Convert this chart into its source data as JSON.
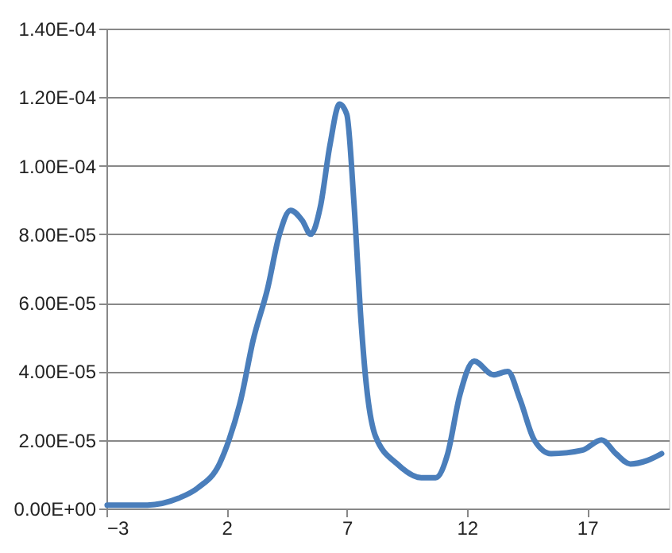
{
  "chart_data": {
    "type": "line",
    "x": [
      -2.97,
      -1.3,
      0.0,
      0.8,
      1.7,
      2.1,
      2.6,
      3.1,
      3.7,
      4.2,
      4.66,
      5.15,
      5.5,
      5.9,
      6.3,
      6.7,
      7.0,
      7.3,
      7.6,
      7.8,
      8.2,
      9.1,
      10.1,
      10.7,
      11.2,
      11.7,
      12.3,
      13.1,
      13.7,
      14.2,
      14.8,
      15.5,
      16.8,
      17.6,
      18.2,
      18.8,
      19.5,
      20.1
    ],
    "series": [
      {
        "color": "#4a7ebb",
        "values": [
          1e-06,
          1e-06,
          3e-06,
          6e-06,
          1.3e-05,
          2e-05,
          3.2e-05,
          4.9e-05,
          6.4e-05,
          8e-05,
          8.7e-05,
          8.4e-05,
          8e-05,
          8.8e-05,
          0.000106,
          0.000118,
          0.000115,
          8.9e-05,
          5.4e-05,
          3.7e-05,
          2.1e-05,
          1.3e-05,
          9e-06,
          9e-06,
          1.6e-05,
          3.3e-05,
          4.3e-05,
          3.9e-05,
          4e-05,
          3.2e-05,
          2e-05,
          1.6e-05,
          1.7e-05,
          2e-05,
          1.6e-05,
          1.3e-05,
          1.4e-05,
          1.6e-05
        ]
      }
    ],
    "xlim": [
      -3,
      20.4
    ],
    "xticks": [
      -3,
      2,
      7,
      12,
      17
    ],
    "ylim": [
      0,
      0.00014
    ],
    "yticks": [
      {
        "value": 0,
        "label": "0.00E+00"
      },
      {
        "value": 2e-05,
        "label": "2.00E-05"
      },
      {
        "value": 4e-05,
        "label": "4.00E-05"
      },
      {
        "value": 6e-05,
        "label": "6.00E-05"
      },
      {
        "value": 8e-05,
        "label": "8.00E-05"
      },
      {
        "value": 0.0001,
        "label": "1.00E-04"
      },
      {
        "value": 0.00012,
        "label": "1.20E-04"
      },
      {
        "value": 0.00014,
        "label": "1.40E-04"
      }
    ],
    "grid": "y",
    "marker": "none",
    "line_style": "solid"
  }
}
